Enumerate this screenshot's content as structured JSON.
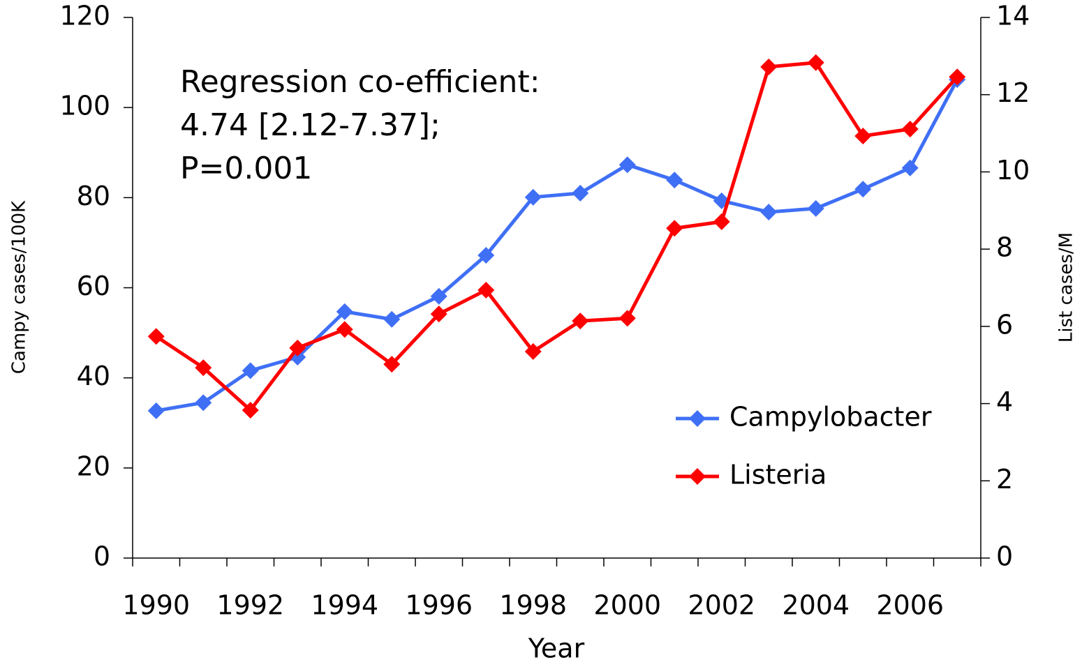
{
  "chart_data": {
    "type": "line",
    "categories": [
      "1990",
      null,
      "1992",
      null,
      "1994",
      null,
      "1996",
      null,
      "1998",
      null,
      "2000",
      null,
      "2002",
      null,
      "2004",
      null,
      "2006",
      null
    ],
    "series": [
      {
        "name": "Campylobacter",
        "color": "#3f6ff5",
        "values": [
          32.7,
          34.5,
          41.6,
          44.6,
          54.7,
          53.0,
          58.1,
          67.2,
          80.1,
          81.0,
          87.3,
          83.9,
          79.3,
          76.8,
          77.6,
          81.9,
          86.6,
          106.2
        ]
      },
      {
        "name": "Listeria",
        "color": "#ff0000",
        "axis": "y2",
        "values": [
          5.74,
          4.93,
          3.83,
          5.44,
          5.92,
          5.02,
          6.32,
          6.94,
          5.35,
          6.14,
          6.21,
          8.54,
          8.71,
          12.72,
          12.83,
          10.93,
          11.11,
          12.46
        ]
      }
    ],
    "x_label": "Year",
    "y_label": "Campy cases/100K",
    "y2_label": "List cases/M",
    "annotation": [
      "Regression co-efficient:",
      "4.74 [2.12-7.37];",
      "P=0.001"
    ],
    "ylim": [
      0,
      120
    ],
    "yticks": [
      0,
      20,
      40,
      60,
      80,
      100,
      120
    ],
    "y2lim": [
      0,
      14
    ],
    "y2ticks": [
      0,
      2,
      4,
      6,
      8,
      10,
      12,
      14
    ],
    "legend": "lower right"
  }
}
